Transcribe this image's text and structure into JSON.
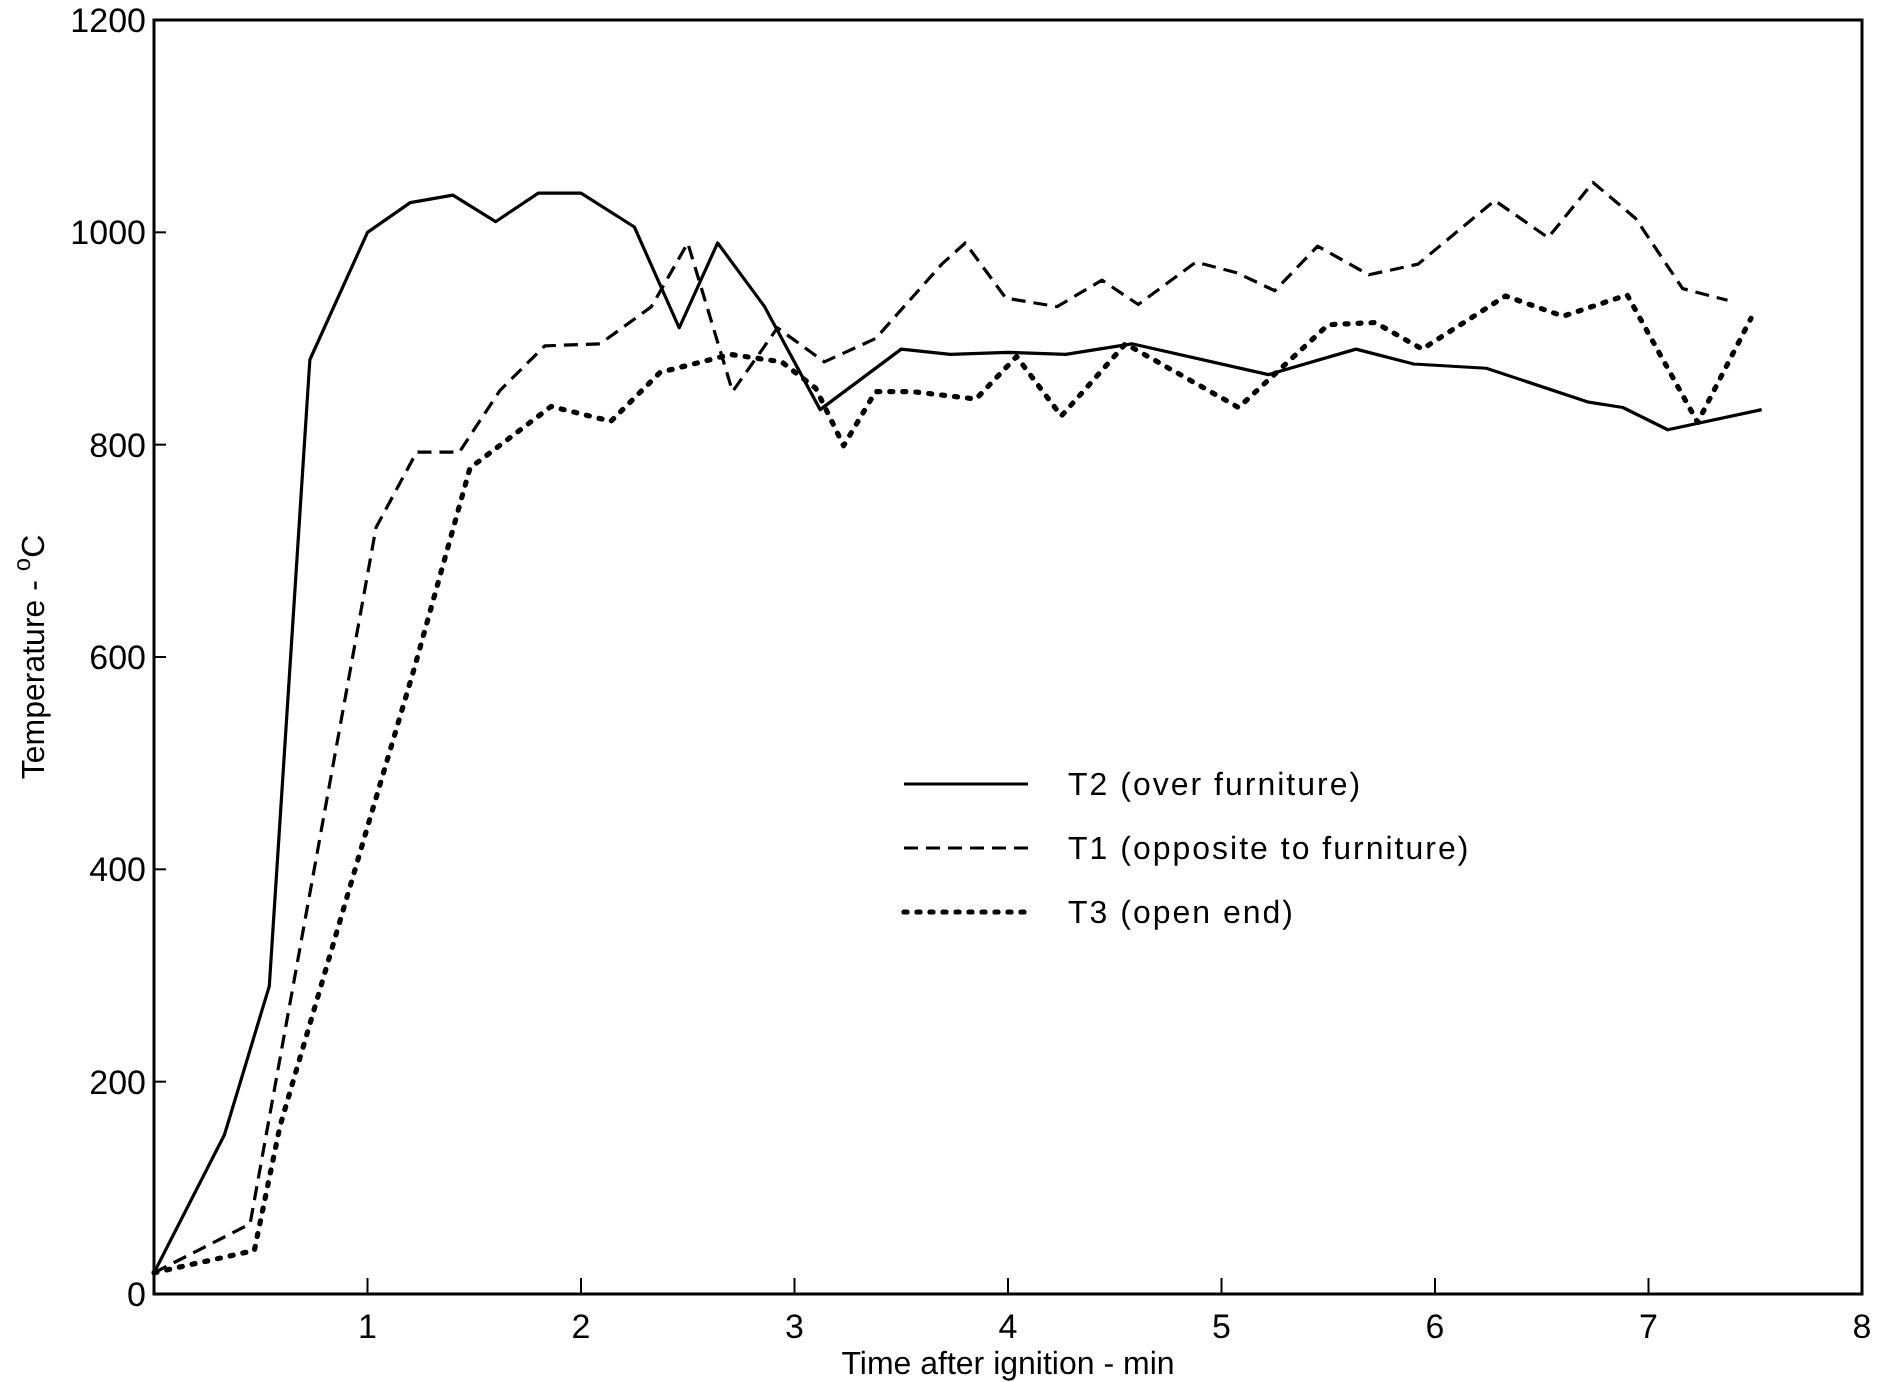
{
  "chart_data": {
    "type": "line",
    "xlabel": "Time after ignition - min",
    "ylabel": "Temperature - $^{o}$C",
    "xlim": [
      0,
      8
    ],
    "ylim": [
      0,
      1200
    ],
    "xticks": [
      1,
      2,
      3,
      4,
      5,
      6,
      7,
      8
    ],
    "yticks": [
      0,
      200,
      400,
      600,
      800,
      1000,
      1200
    ],
    "grid": false,
    "legend": "right",
    "series": [
      {
        "name": "T2 (over furniture)",
        "color": "#000000",
        "line_style": "solid",
        "x": [
          0,
          0.33,
          0.54,
          0.73,
          1.0,
          1.2,
          1.4,
          1.6,
          1.8,
          2.0,
          2.25,
          2.46,
          2.64,
          2.86,
          3.12,
          3.5,
          3.73,
          4.0,
          4.27,
          4.58,
          5.22,
          5.63,
          5.9,
          6.24,
          6.72,
          6.88,
          7.09,
          7.53
        ],
        "values": [
          20,
          150,
          290,
          880,
          1000,
          1028,
          1035,
          1010,
          1037,
          1037,
          1005,
          910,
          990,
          930,
          833,
          890,
          885,
          887,
          885,
          895,
          866,
          890,
          876,
          872,
          840,
          835,
          814,
          833
        ]
      },
      {
        "name": "T1 (opposite to furniture)",
        "color": "#000000",
        "line_style": "dashed",
        "x": [
          0,
          0.45,
          1.04,
          1.23,
          1.43,
          1.62,
          1.83,
          2.09,
          2.33,
          2.5,
          2.71,
          2.92,
          3.14,
          3.38,
          3.69,
          3.8,
          3.99,
          4.23,
          4.44,
          4.61,
          4.88,
          5.07,
          5.25,
          5.45,
          5.69,
          5.92,
          6.28,
          6.53,
          6.74,
          6.94,
          7.16,
          7.37
        ],
        "values": [
          20,
          66,
          722,
          793,
          793,
          851,
          893,
          895,
          930,
          990,
          850,
          910,
          878,
          900,
          970,
          990,
          938,
          930,
          955,
          932,
          972,
          962,
          945,
          987,
          960,
          970,
          1030,
          995,
          1047,
          1013,
          947,
          936
        ]
      },
      {
        "name": "T3 (open end)",
        "color": "#000000",
        "line_style": "dotted",
        "x": [
          0,
          0.47,
          0.59,
          1.0,
          1.22,
          1.48,
          1.86,
          2.14,
          2.37,
          2.7,
          2.94,
          3.1,
          3.23,
          3.38,
          3.55,
          3.85,
          4.04,
          4.25,
          4.55,
          5.08,
          5.5,
          5.72,
          5.94,
          6.33,
          6.6,
          6.9,
          7.23,
          7.48
        ],
        "values": [
          20,
          41,
          158,
          440,
          590,
          778,
          836,
          822,
          868,
          885,
          878,
          853,
          799,
          850,
          850,
          843,
          883,
          827,
          895,
          835,
          913,
          915,
          890,
          940,
          921,
          941,
          821,
          919
        ]
      }
    ]
  }
}
